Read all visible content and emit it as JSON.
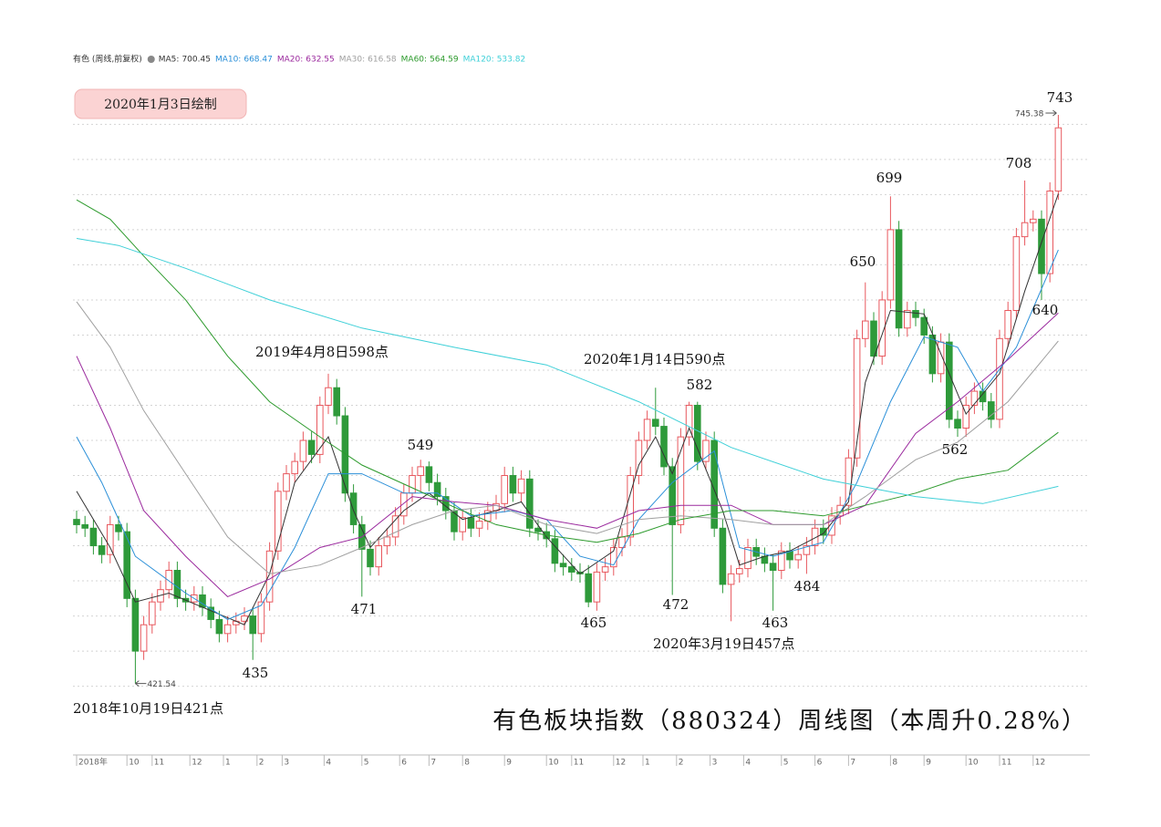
{
  "chart_data": {
    "type": "candlestick",
    "header": "有色 (周线,前复权)",
    "stamp": "2020年1月3日绘制",
    "title": "有色板块指数（880324）周线图（本周升0.28%）",
    "annotations": [
      "2019年4月8日598点",
      "2020年1月14日590点",
      "2020年3月19日457点",
      "2018年10月19日421点"
    ],
    "price_labels": [
      743,
      708,
      699,
      650,
      640,
      562,
      582,
      549,
      471,
      435,
      465,
      472,
      463,
      484
    ],
    "up_color": "#e8585e",
    "down_color": "#2e9a3a",
    "xlim": [
      -0.5,
      118.5
    ],
    "ylim": [
      385,
      762
    ],
    "yticks": [
      420,
      440,
      460,
      480,
      500,
      520,
      540,
      560,
      580,
      600,
      620,
      640,
      660,
      680,
      700,
      720,
      740
    ],
    "grid": true,
    "xticks": [
      {
        "value": 0,
        "label": "2018年"
      },
      {
        "value": 6,
        "label": "10"
      },
      {
        "value": 9,
        "label": "11"
      },
      {
        "value": 13.5,
        "label": "12"
      },
      {
        "value": 17.5,
        "label": "1"
      },
      {
        "value": 21.5,
        "label": "2"
      },
      {
        "value": 24.5,
        "label": "3"
      },
      {
        "value": 29.5,
        "label": "4"
      },
      {
        "value": 34,
        "label": "5"
      },
      {
        "value": 38.5,
        "label": "6"
      },
      {
        "value": 42,
        "label": "7"
      },
      {
        "value": 46,
        "label": "8"
      },
      {
        "value": 51,
        "label": "9"
      },
      {
        "value": 56,
        "label": "10"
      },
      {
        "value": 59,
        "label": "11"
      },
      {
        "value": 64,
        "label": "12"
      },
      {
        "value": 67.5,
        "label": "1"
      },
      {
        "value": 71.5,
        "label": "2"
      },
      {
        "value": 75.5,
        "label": "3"
      },
      {
        "value": 79.5,
        "label": "4"
      },
      {
        "value": 84,
        "label": "5"
      },
      {
        "value": 88,
        "label": "6"
      },
      {
        "value": 92,
        "label": "7"
      },
      {
        "value": 97,
        "label": "8"
      },
      {
        "value": 101,
        "label": "9"
      },
      {
        "value": 106,
        "label": "10"
      },
      {
        "value": 110,
        "label": "11"
      },
      {
        "value": 114,
        "label": "12"
      }
    ],
    "open": [
      515,
      512,
      510,
      500,
      495,
      512,
      508,
      470,
      440,
      455,
      468,
      475,
      486,
      470,
      468,
      472,
      465,
      458,
      450,
      455,
      457,
      460,
      450,
      468,
      497,
      531,
      541,
      548,
      560,
      552,
      580,
      590,
      574,
      530,
      512,
      498,
      488,
      500,
      505,
      517,
      530,
      540,
      545,
      536,
      528,
      520,
      508,
      516,
      510,
      514,
      520,
      524,
      540,
      530,
      538,
      510,
      508,
      504,
      490,
      488,
      485,
      484,
      468,
      485,
      488,
      499,
      505,
      540,
      560,
      572,
      568,
      545,
      512,
      562,
      580,
      548,
      560,
      510,
      478,
      484,
      487,
      499,
      494,
      490,
      486,
      497,
      492,
      495,
      500,
      510,
      506,
      517,
      523,
      550,
      618,
      628,
      608,
      640,
      680,
      624,
      634,
      630,
      620,
      598,
      616,
      572,
      567,
      580,
      588,
      582,
      572,
      618,
      634,
      676,
      684,
      686,
      655,
      702
    ],
    "high": [
      520,
      517,
      515,
      505,
      517,
      517,
      513,
      475,
      460,
      473,
      480,
      491,
      491,
      475,
      477,
      477,
      470,
      463,
      460,
      462,
      465,
      465,
      473,
      502,
      536,
      546,
      553,
      565,
      565,
      585,
      598,
      595,
      579,
      535,
      517,
      503,
      505,
      510,
      522,
      535,
      545,
      549,
      548,
      541,
      533,
      525,
      521,
      521,
      519,
      525,
      529,
      545,
      545,
      543,
      543,
      515,
      513,
      509,
      495,
      493,
      490,
      489,
      490,
      493,
      504,
      510,
      545,
      565,
      577,
      590,
      573,
      550,
      567,
      582,
      582,
      565,
      565,
      515,
      489,
      492,
      504,
      504,
      499,
      495,
      502,
      502,
      500,
      505,
      515,
      515,
      522,
      528,
      555,
      623,
      650,
      633,
      645,
      699,
      685,
      639,
      639,
      635,
      625,
      621,
      621,
      577,
      585,
      593,
      593,
      587,
      623,
      639,
      681,
      708,
      691,
      691,
      707,
      745.38
    ],
    "low": [
      507,
      505,
      495,
      490,
      490,
      503,
      465,
      421.54,
      435,
      450,
      463,
      470,
      465,
      463,
      463,
      460,
      453,
      445,
      445,
      450,
      452,
      435,
      445,
      463,
      492,
      526,
      536,
      543,
      547,
      547,
      575,
      569,
      525,
      507,
      471,
      483,
      483,
      495,
      500,
      512,
      525,
      531,
      531,
      523,
      515,
      503,
      503,
      505,
      505,
      509,
      515,
      519,
      525,
      525,
      505,
      503,
      499,
      485,
      483,
      480,
      479,
      465,
      463,
      480,
      483,
      494,
      500,
      535,
      555,
      563,
      540,
      472,
      507,
      557,
      543,
      543,
      505,
      473,
      457,
      479,
      482,
      489,
      485,
      463,
      481,
      487,
      487,
      484,
      495,
      501,
      501,
      512,
      518,
      545,
      613,
      603,
      603,
      635,
      619,
      619,
      625,
      615,
      593,
      593,
      567,
      562,
      562,
      575,
      577,
      567,
      567,
      613,
      629,
      671,
      679,
      640,
      650,
      697
    ],
    "close": [
      512,
      510,
      500,
      495,
      512,
      508,
      470,
      440,
      455,
      468,
      475,
      486,
      470,
      468,
      472,
      465,
      458,
      450,
      455,
      457,
      460,
      450,
      468,
      497,
      531,
      541,
      548,
      560,
      552,
      580,
      590,
      574,
      530,
      512,
      498,
      488,
      500,
      505,
      517,
      530,
      540,
      545,
      536,
      528,
      520,
      508,
      516,
      510,
      514,
      520,
      524,
      540,
      530,
      538,
      510,
      508,
      504,
      490,
      488,
      485,
      484,
      468,
      485,
      488,
      499,
      505,
      540,
      560,
      572,
      568,
      545,
      512,
      562,
      580,
      548,
      560,
      510,
      478,
      484,
      487,
      499,
      494,
      490,
      486,
      497,
      492,
      495,
      500,
      510,
      506,
      517,
      523,
      550,
      618,
      628,
      608,
      640,
      680,
      624,
      634,
      630,
      620,
      598,
      616,
      572,
      567,
      580,
      588,
      582,
      572,
      618,
      634,
      676,
      684,
      686,
      655,
      702,
      738
    ],
    "series": [
      {
        "name": "MA5:",
        "color": "#333333",
        "x": [
          0,
          4,
          7,
          11,
          16,
          20,
          23,
          26,
          30,
          33,
          35,
          39,
          42,
          46,
          50,
          53,
          56,
          60,
          64,
          67,
          69,
          71,
          73,
          77,
          79,
          82,
          85,
          89,
          92,
          94,
          97,
          101,
          104,
          106,
          110,
          113,
          117
        ],
        "values": [
          531,
          499,
          468,
          473,
          463,
          455,
          484,
          536,
          562,
          520,
          499,
          520,
          530,
          515,
          520,
          525,
          505,
          484,
          497,
          546,
          562,
          541,
          567,
          520,
          489,
          494,
          497,
          507,
          525,
          593,
          634,
          632,
          598,
          575,
          598,
          645,
          700.45
        ]
      },
      {
        "name": "MA10:",
        "color": "#2a8fd8",
        "x": [
          0,
          3,
          7,
          13,
          18,
          22,
          26,
          30,
          34,
          39,
          43,
          47,
          52,
          56,
          60,
          64,
          67,
          71,
          76,
          79,
          83,
          89,
          93,
          97,
          101,
          105,
          108,
          112,
          117
        ],
        "values": [
          562,
          536,
          494,
          473,
          458,
          466,
          499,
          541,
          541,
          530,
          530,
          517,
          520,
          515,
          494,
          489,
          515,
          536,
          554,
          499,
          494,
          502,
          536,
          582,
          619,
          613,
          588,
          613,
          668.47
        ]
      },
      {
        "name": "MA20:",
        "color": "#9b2a9e",
        "x": [
          0,
          4,
          8,
          13,
          18,
          23,
          29,
          34,
          40,
          45,
          50,
          56,
          62,
          67,
          72,
          78,
          83,
          89,
          94,
          100,
          105,
          111,
          117
        ],
        "values": [
          608,
          567,
          520,
          494,
          471,
          481,
          499,
          505,
          528,
          525,
          523,
          515,
          510,
          520,
          523,
          523,
          512,
          512,
          523,
          564,
          582,
          606,
          632.55
        ]
      },
      {
        "name": "MA30:",
        "color": "#a0a0a0",
        "x": [
          0,
          4,
          8,
          13,
          18,
          23,
          29,
          34,
          40,
          45,
          50,
          56,
          62,
          67,
          72,
          78,
          83,
          89,
          94,
          100,
          105,
          111,
          117
        ],
        "values": [
          639,
          613,
          577,
          541,
          505,
          484,
          489,
          499,
          512,
          520,
          523,
          512,
          507,
          515,
          517,
          515,
          512,
          512,
          528,
          549,
          559,
          582,
          616.58
        ]
      },
      {
        "name": "MA60:",
        "color": "#2c9a2c",
        "x": [
          0,
          4,
          8,
          13,
          18,
          23,
          29,
          34,
          40,
          45,
          50,
          56,
          62,
          67,
          72,
          78,
          83,
          89,
          94,
          100,
          105,
          111,
          117
        ],
        "values": [
          697,
          686,
          665,
          640,
          608,
          582,
          562,
          546,
          533,
          522,
          512,
          506,
          502,
          507,
          515,
          520,
          520,
          517,
          523,
          530,
          538,
          543,
          564.59
        ]
      },
      {
        "name": "MA120:",
        "color": "#3fd0d8",
        "x": [
          0,
          5,
          13,
          23,
          34,
          45,
          56,
          67,
          78,
          89,
          100,
          108,
          117
        ],
        "values": [
          675,
          671,
          658,
          640,
          624,
          613,
          603,
          582,
          556,
          538,
          528,
          524,
          533.82
        ]
      }
    ]
  }
}
